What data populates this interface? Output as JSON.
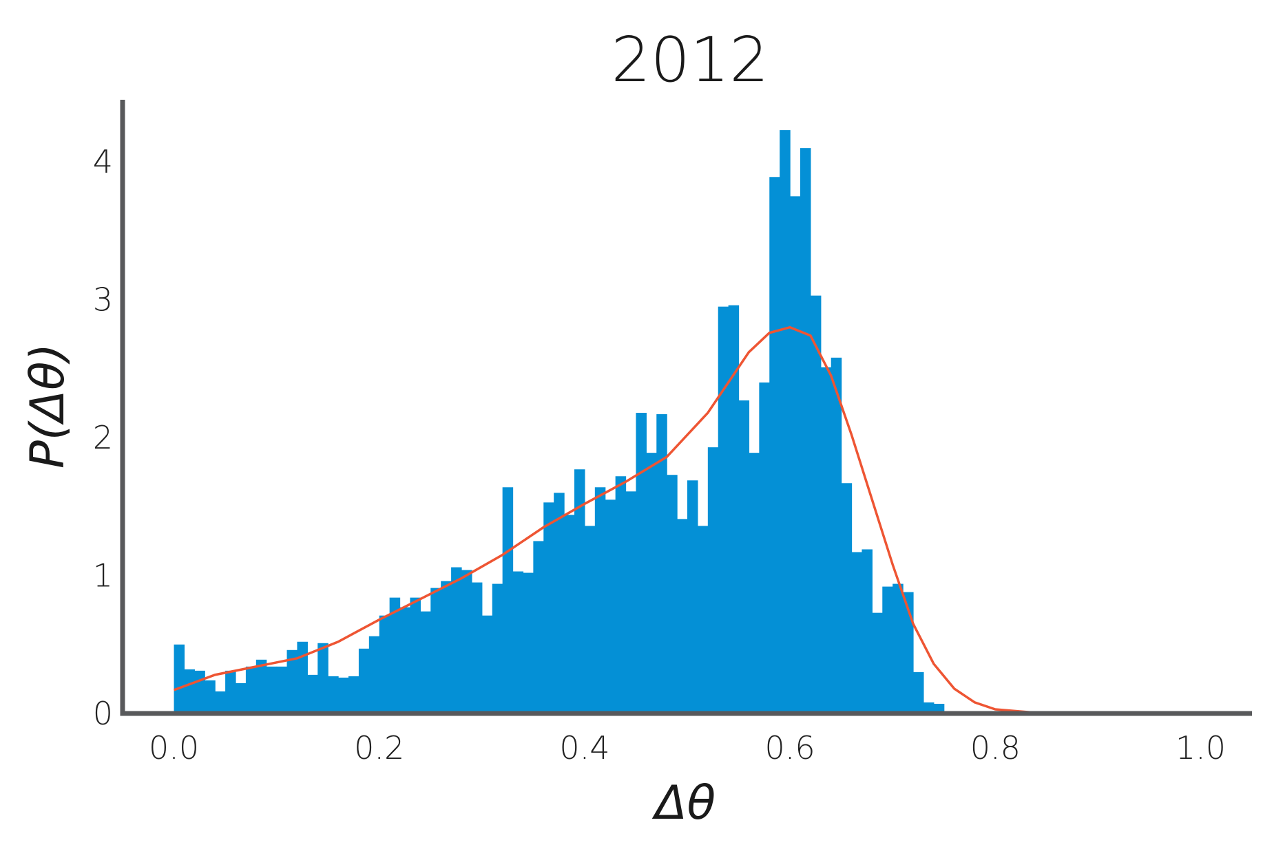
{
  "chart_data": {
    "type": "bar",
    "subtype": "histogram",
    "title": "2012",
    "xlabel": "Δθ",
    "ylabel": "P(Δθ)",
    "xlim": [
      -0.05,
      1.05
    ],
    "ylim": [
      0,
      4.45
    ],
    "xticks": [
      0.0,
      0.2,
      0.4,
      0.6,
      0.8,
      1.0
    ],
    "xtick_labels": [
      "0.0",
      "0.2",
      "0.4",
      "0.6",
      "0.8",
      "1.0"
    ],
    "yticks": [
      0,
      1,
      2,
      3,
      4
    ],
    "ytick_labels": [
      "0",
      "1",
      "2",
      "3",
      "4"
    ],
    "grid": false,
    "legend": "none",
    "bin_start": 0.0,
    "bin_width": 0.01,
    "values": [
      0.5,
      0.32,
      0.31,
      0.24,
      0.16,
      0.31,
      0.22,
      0.34,
      0.39,
      0.34,
      0.34,
      0.46,
      0.52,
      0.28,
      0.51,
      0.27,
      0.26,
      0.27,
      0.47,
      0.56,
      0.71,
      0.84,
      0.77,
      0.84,
      0.74,
      0.91,
      0.96,
      1.06,
      1.04,
      0.95,
      0.71,
      0.94,
      1.64,
      1.03,
      1.02,
      1.25,
      1.53,
      1.6,
      1.44,
      1.77,
      1.36,
      1.64,
      1.55,
      1.72,
      1.61,
      2.18,
      1.89,
      2.17,
      1.73,
      1.41,
      1.69,
      1.36,
      1.93,
      2.95,
      2.96,
      2.27,
      1.89,
      2.4,
      3.89,
      4.23,
      3.75,
      4.1,
      3.03,
      2.51,
      2.58,
      1.67,
      1.17,
      1.19,
      0.73,
      0.92,
      0.94,
      0.88,
      0.3,
      0.08,
      0.07
    ],
    "series": [
      {
        "type": "line",
        "x": [
          0.0,
          0.04,
          0.08,
          0.12,
          0.16,
          0.2,
          0.24,
          0.28,
          0.32,
          0.36,
          0.4,
          0.44,
          0.48,
          0.52,
          0.56,
          0.58,
          0.6,
          0.62,
          0.64,
          0.66,
          0.68,
          0.7,
          0.72,
          0.74,
          0.76,
          0.78,
          0.8,
          0.84,
          0.88
        ],
        "y": [
          0.17,
          0.28,
          0.34,
          0.4,
          0.52,
          0.68,
          0.83,
          0.98,
          1.15,
          1.35,
          1.52,
          1.68,
          1.86,
          2.18,
          2.62,
          2.76,
          2.8,
          2.74,
          2.45,
          2.02,
          1.55,
          1.08,
          0.65,
          0.36,
          0.18,
          0.08,
          0.03,
          0.005,
          0.0
        ]
      }
    ],
    "colors": {
      "bars": "#0490d6",
      "curve": "#ee5533",
      "axes": "#58595b"
    }
  }
}
